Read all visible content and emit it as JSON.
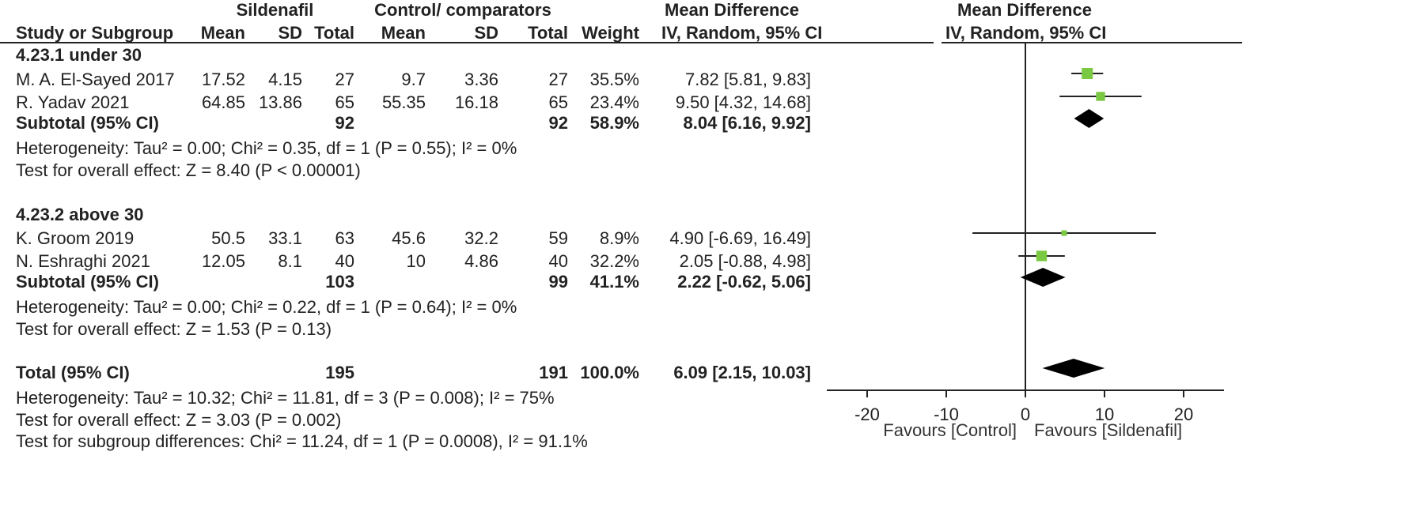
{
  "header": {
    "group1_title": "Sildenafil",
    "group2_title": "Control/ comparators",
    "md_title": "Mean Difference",
    "plot_title": "Mean Difference",
    "col_study": "Study or Subgroup",
    "col_mean1": "Mean",
    "col_sd1": "SD",
    "col_total1": "Total",
    "col_mean2": "Mean",
    "col_sd2": "SD",
    "col_total2": "Total",
    "col_weight": "Weight",
    "col_md": "IV, Random, 95% CI",
    "plot_subtitle": "IV, Random, 95% CI"
  },
  "subgroups": [
    {
      "title": "4.23.1 under 30",
      "studies": [
        {
          "name": "M. A. El-Sayed 2017",
          "mean1": "17.52",
          "sd1": "4.15",
          "total1": "27",
          "mean2": "9.7",
          "sd2": "3.36",
          "total2": "27",
          "weight": "35.5%",
          "ci": "7.82 [5.81, 9.83]"
        },
        {
          "name": "R. Yadav 2021",
          "mean1": "64.85",
          "sd1": "13.86",
          "total1": "65",
          "mean2": "55.35",
          "sd2": "16.18",
          "total2": "65",
          "weight": "23.4%",
          "ci": "9.50 [4.32, 14.68]"
        }
      ],
      "subtotal": {
        "label": "Subtotal (95% CI)",
        "total1": "92",
        "total2": "92",
        "weight": "58.9%",
        "ci": "8.04 [6.16, 9.92]"
      },
      "heterogeneity": "Heterogeneity: Tau² = 0.00; Chi² = 0.35, df = 1 (P = 0.55); I² = 0%",
      "overall": "Test for overall effect: Z = 8.40 (P < 0.00001)"
    },
    {
      "title": "4.23.2 above 30",
      "studies": [
        {
          "name": "K. Groom 2019",
          "mean1": "50.5",
          "sd1": "33.1",
          "total1": "63",
          "mean2": "45.6",
          "sd2": "32.2",
          "total2": "59",
          "weight": "8.9%",
          "ci": "4.90 [-6.69, 16.49]"
        },
        {
          "name": "N. Eshraghi 2021",
          "mean1": "12.05",
          "sd1": "8.1",
          "total1": "40",
          "mean2": "10",
          "sd2": "4.86",
          "total2": "40",
          "weight": "32.2%",
          "ci": "2.05 [-0.88, 4.98]"
        }
      ],
      "subtotal": {
        "label": "Subtotal (95% CI)",
        "total1": "103",
        "total2": "99",
        "weight": "41.1%",
        "ci": "2.22 [-0.62, 5.06]"
      },
      "heterogeneity": "Heterogeneity: Tau² = 0.00; Chi² = 0.22, df = 1 (P = 0.64); I² = 0%",
      "overall": "Test for overall effect: Z = 1.53 (P = 0.13)"
    }
  ],
  "total": {
    "label": "Total (95% CI)",
    "total1": "195",
    "total2": "191",
    "weight": "100.0%",
    "ci": "6.09 [2.15, 10.03]",
    "heterogeneity": "Heterogeneity: Tau² = 10.32; Chi² = 11.81, df = 3 (P = 0.008); I² = 75%",
    "overall": "Test for overall effect: Z = 3.03 (P = 0.002)",
    "subgroup_diff": "Test for subgroup differences: Chi² = 11.24, df = 1 (P = 0.0008), I² = 91.1%"
  },
  "axis": {
    "ticks": [
      "-20",
      "-10",
      "0",
      "10",
      "20"
    ],
    "favours_left": "Favours [Control]",
    "favours_right": "Favours [Sildenafil]"
  },
  "colors": {
    "square": "#7ac943",
    "diamond": "#000000",
    "line": "#222222"
  },
  "chart_data": {
    "type": "forest",
    "xlim": [
      -20,
      20
    ],
    "ticks": [
      -20,
      -10,
      0,
      10,
      20
    ],
    "studies": [
      {
        "name": "M. A. El-Sayed 2017",
        "md": 7.82,
        "lo": 5.81,
        "hi": 9.83,
        "weight": 35.5
      },
      {
        "name": "R. Yadav 2021",
        "md": 9.5,
        "lo": 4.32,
        "hi": 14.68,
        "weight": 23.4
      },
      {
        "name": "K. Groom 2019",
        "md": 4.9,
        "lo": -6.69,
        "hi": 16.49,
        "weight": 8.9
      },
      {
        "name": "N. Eshraghi 2021",
        "md": 2.05,
        "lo": -0.88,
        "hi": 4.98,
        "weight": 32.2
      }
    ],
    "pooled": [
      {
        "name": "Subtotal 4.23.1",
        "md": 8.04,
        "lo": 6.16,
        "hi": 9.92
      },
      {
        "name": "Subtotal 4.23.2",
        "md": 2.22,
        "lo": -0.62,
        "hi": 5.06
      },
      {
        "name": "Total",
        "md": 6.09,
        "lo": 2.15,
        "hi": 10.03
      }
    ]
  }
}
